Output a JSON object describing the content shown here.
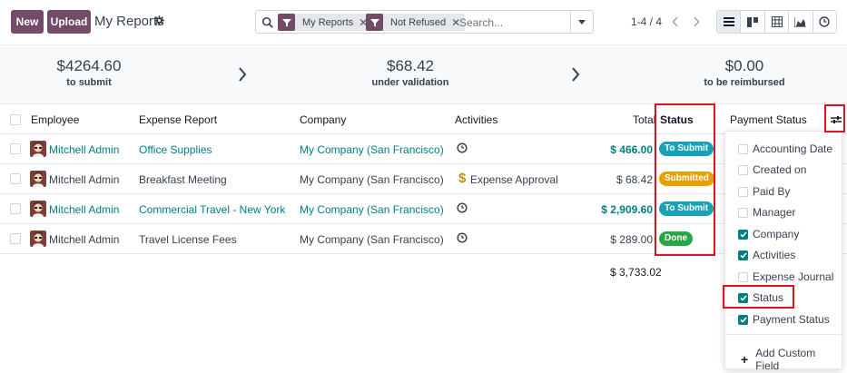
{
  "toolbar": {
    "new_label": "New",
    "upload_label": "Upload",
    "title": "My Reports",
    "search_placeholder": "Search...",
    "facets": [
      "My Reports",
      "Not Refused"
    ],
    "pager": "1-4 / 4"
  },
  "summary": [
    {
      "amount": "$4264.60",
      "label": "to submit"
    },
    {
      "amount": "$68.42",
      "label": "under validation"
    },
    {
      "amount": "$0.00",
      "label": "to be reimbursed"
    }
  ],
  "columns": {
    "employee": "Employee",
    "report": "Expense Report",
    "company": "Company",
    "activities": "Activities",
    "total": "Total",
    "status": "Status",
    "payment_status": "Payment Status"
  },
  "rows": [
    {
      "employee": "Mitchell Admin",
      "report": "Office Supplies",
      "report_link": true,
      "company": "My Company (San Francisco)",
      "activity": "",
      "total": "$ 466.00",
      "total_link": true,
      "status": "To Submit",
      "status_color": "#17a2b8"
    },
    {
      "employee": "Mitchell Admin",
      "report": "Breakfast Meeting",
      "report_link": false,
      "company": "My Company (San Francisco)",
      "activity": "Expense Approval",
      "total": "$ 68.42",
      "total_link": false,
      "status": "Submitted",
      "status_color": "#e6a100"
    },
    {
      "employee": "Mitchell Admin",
      "report": "Commercial Travel - New York",
      "report_link": true,
      "company": "My Company (San Francisco)",
      "activity": "",
      "total": "$ 2,909.60",
      "total_link": true,
      "status": "To Submit",
      "status_color": "#17a2b8"
    },
    {
      "employee": "Mitchell Admin",
      "report": "Travel License Fees",
      "report_link": false,
      "company": "My Company (San Francisco)",
      "activity": "",
      "total": "$ 289.00",
      "total_link": false,
      "status": "Done",
      "status_color": "#28a745"
    }
  ],
  "grand_total": "$ 3,733.02",
  "optional_columns": [
    {
      "label": "Accounting Date",
      "checked": false
    },
    {
      "label": "Created on",
      "checked": false
    },
    {
      "label": "Paid By",
      "checked": false
    },
    {
      "label": "Manager",
      "checked": false
    },
    {
      "label": "Company",
      "checked": true
    },
    {
      "label": "Activities",
      "checked": true
    },
    {
      "label": "Expense Journal",
      "checked": false
    },
    {
      "label": "Status",
      "checked": true
    },
    {
      "label": "Payment Status",
      "checked": true
    }
  ],
  "add_custom_field": "Add Custom Field",
  "colors": {
    "brand": "#714b67",
    "link": "#017e84",
    "highlight": "#e0121b"
  }
}
